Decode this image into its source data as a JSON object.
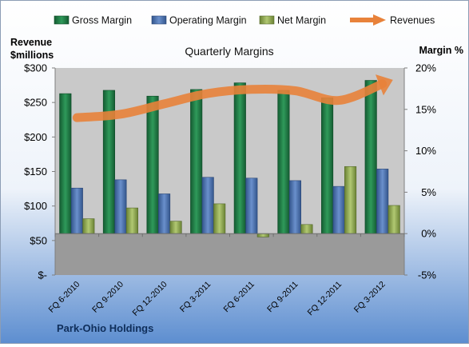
{
  "chart_data": {
    "type": "bar",
    "title": "Quarterly Margins",
    "company": "Park-Ohio Holdings",
    "left_axis": {
      "label_line1": "Revenue",
      "label_line2": "$millions",
      "min": 0,
      "max": 300,
      "ticks": [
        0,
        50,
        100,
        150,
        200,
        250,
        300
      ],
      "tick_labels": [
        "$-",
        "$50",
        "$100",
        "$150",
        "$200",
        "$250",
        "$300"
      ]
    },
    "right_axis": {
      "label": "Margin %",
      "min": -5,
      "max": 20,
      "ticks": [
        -5,
        0,
        5,
        10,
        15,
        20
      ],
      "tick_labels": [
        "-5%",
        "0%",
        "5%",
        "10%",
        "15%",
        "20%"
      ]
    },
    "categories": [
      "FQ 6-2010",
      "FQ 9-2010",
      "FQ 12-2010",
      "FQ 3-2011",
      "FQ 6-2011",
      "FQ 9-2011",
      "FQ 12-2011",
      "FQ 3-2012"
    ],
    "series": [
      {
        "name": "Gross Margin",
        "type": "bar",
        "axis": "right",
        "color": "#1e7a45",
        "values": [
          16.9,
          17.3,
          16.6,
          17.4,
          18.2,
          17.3,
          16.4,
          18.5
        ]
      },
      {
        "name": "Operating Margin",
        "type": "bar",
        "axis": "right",
        "color": "#4a71b2",
        "values": [
          5.5,
          6.5,
          4.8,
          6.8,
          6.7,
          6.4,
          5.7,
          7.8
        ]
      },
      {
        "name": "Net Margin",
        "type": "bar",
        "axis": "right",
        "color": "#8ea84f",
        "values": [
          1.8,
          3.1,
          1.5,
          3.6,
          -0.4,
          1.1,
          8.1,
          3.4
        ]
      },
      {
        "name": "Revenues",
        "type": "line",
        "axis": "left",
        "color": "#e8823a",
        "values": [
          228,
          233,
          248,
          263,
          269,
          267,
          253,
          277
        ]
      }
    ],
    "colors": {
      "plot_upper": "#c9c9c9",
      "plot_lower": "#9a9a9a",
      "background_top": "#ffffff",
      "background_bottom": "#5d8ed0"
    },
    "grid": false,
    "legend": "top"
  }
}
